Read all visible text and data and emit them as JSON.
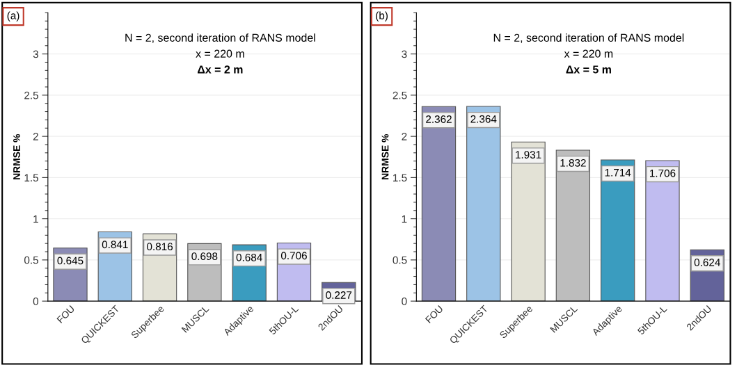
{
  "chart_data": [
    {
      "type": "bar",
      "title": "N = 2, second iteration of RANS model",
      "subtitle": "x = 220 m",
      "ylabel": "NRMSE %",
      "annotations": [
        "Δx = 2 m",
        "(a)"
      ],
      "categories": [
        "FOU",
        "QUICKEST",
        "Superbee",
        "MUSCL",
        "Adaptive",
        "5thOU-L",
        "2ndOU"
      ],
      "values": [
        0.645,
        0.841,
        0.816,
        0.698,
        0.684,
        0.706,
        0.227
      ],
      "colors": [
        "#8b8bb5",
        "#9cc3e6",
        "#e3e2d6",
        "#bdbdbd",
        "#3a9cbf",
        "#c0bcf0",
        "#63639a"
      ],
      "ylim": [
        0,
        3.5
      ],
      "yticks": [
        0,
        0.5,
        1,
        1.5,
        2,
        2.5,
        3
      ],
      "grid": "y",
      "data_labels": true
    },
    {
      "type": "bar",
      "title": "N = 2, second iteration of RANS model",
      "subtitle": "x = 220 m",
      "ylabel": "NRMSE %",
      "annotations": [
        "Δx = 5 m",
        "(b)"
      ],
      "categories": [
        "FOU",
        "QUICKEST",
        "Superbee",
        "MUSCL",
        "Adaptive",
        "5thOU-L",
        "2ndOU"
      ],
      "values": [
        2.362,
        2.364,
        1.931,
        1.832,
        1.714,
        1.706,
        0.624
      ],
      "colors": [
        "#8b8bb5",
        "#9cc3e6",
        "#e3e2d6",
        "#bdbdbd",
        "#3a9cbf",
        "#c0bcf0",
        "#63639a"
      ],
      "ylim": [
        0,
        3.5
      ],
      "yticks": [
        0,
        0.5,
        1,
        1.5,
        2,
        2.5,
        3
      ],
      "grid": "y",
      "data_labels": true
    }
  ]
}
